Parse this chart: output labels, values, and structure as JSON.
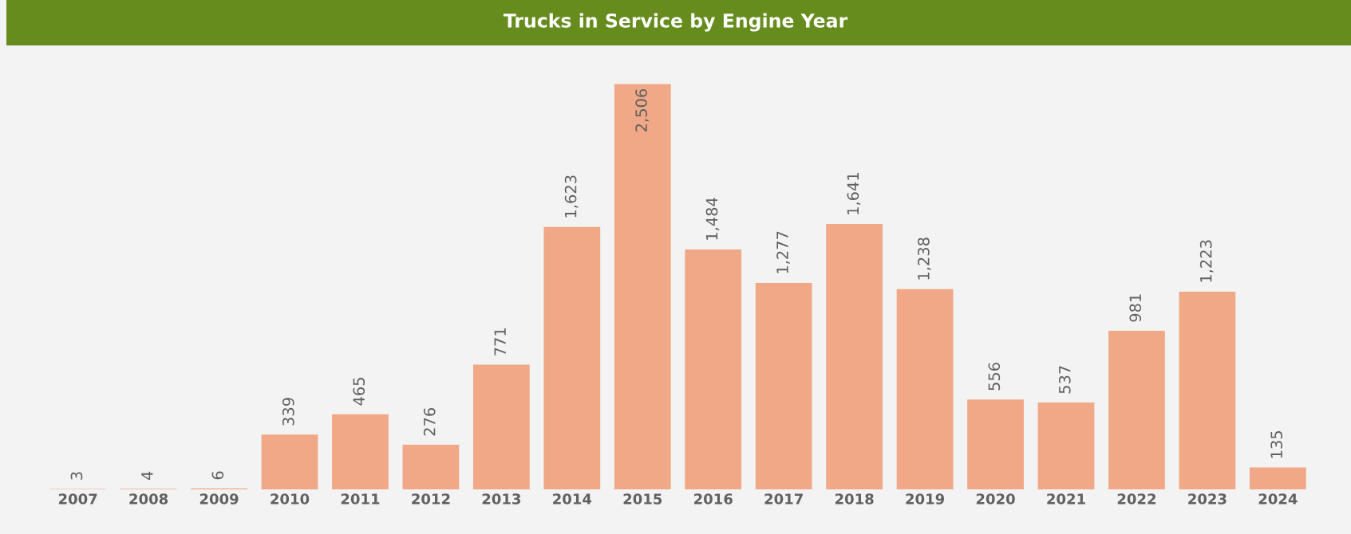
{
  "chart_data": {
    "type": "bar",
    "title": "Trucks in Service by Engine Year",
    "categories": [
      "2007",
      "2008",
      "2009",
      "2010",
      "2011",
      "2012",
      "2013",
      "2014",
      "2015",
      "2016",
      "2017",
      "2018",
      "2019",
      "2020",
      "2021",
      "2022",
      "2023",
      "2024"
    ],
    "values": [
      3,
      4,
      6,
      339,
      465,
      276,
      771,
      1623,
      2506,
      1484,
      1277,
      1641,
      1238,
      556,
      537,
      981,
      1223,
      135
    ],
    "value_labels": [
      "3",
      "4",
      "6",
      "339",
      "465",
      "276",
      "771",
      "1,623",
      "2,506",
      "1,484",
      "1,277",
      "1,641",
      "1,238",
      "556",
      "537",
      "981",
      "1,223",
      "135"
    ],
    "color": "#f0a886",
    "tick_labels": "x",
    "grid": false,
    "legend": false
  }
}
